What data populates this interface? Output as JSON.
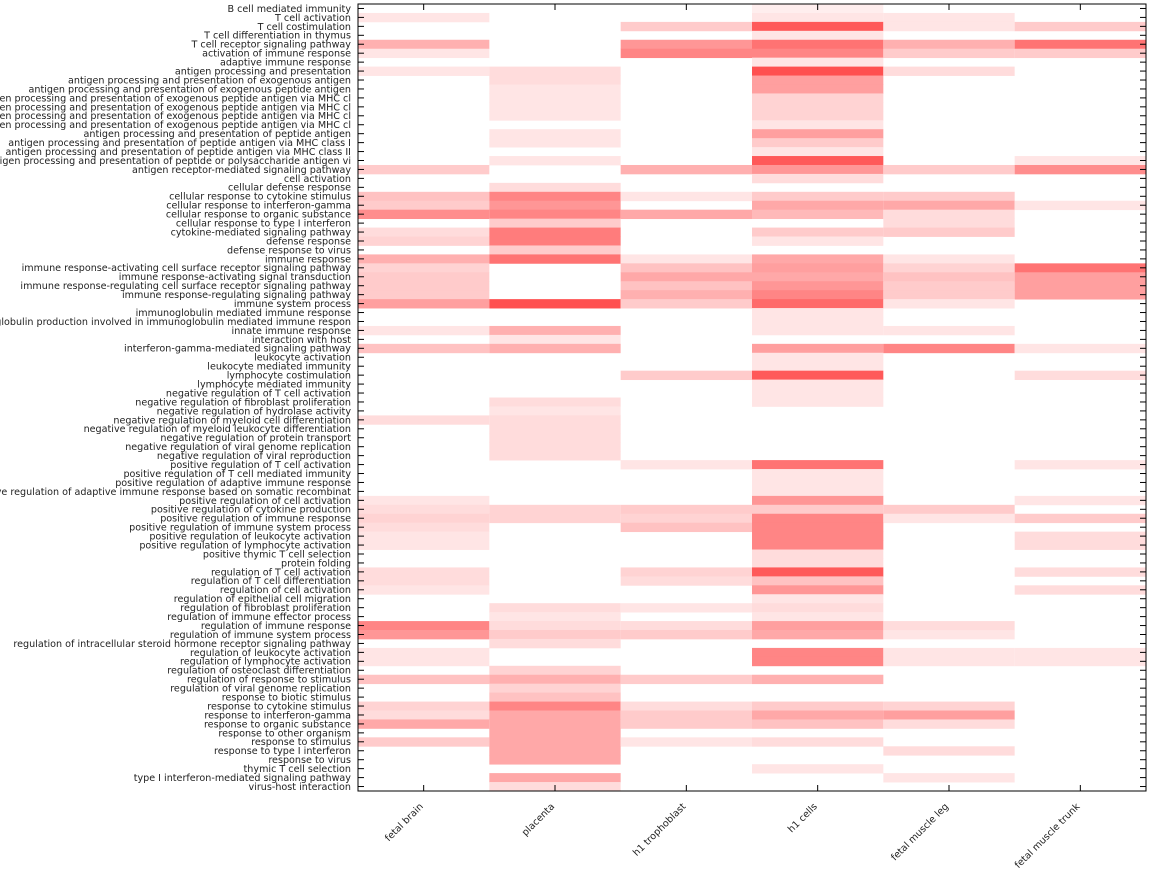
{
  "chart_data": {
    "type": "heatmap",
    "title": "",
    "xlabel": "",
    "ylabel": "",
    "color_low": "#ffffff",
    "color_high": "#ff5050",
    "value_range": [
      0,
      1
    ],
    "x_categories": [
      "fetal brain",
      "placenta",
      "h1 trophoblast",
      "h1 cells",
      "fetal muscle leg",
      "fetal muscle trunk"
    ],
    "y_categories": [
      "B cell mediated immunity",
      "T cell activation",
      "T cell costimulation",
      "T cell differentiation in thymus",
      "T cell receptor signaling pathway",
      "activation of immune response",
      "adaptive immune response",
      "antigen processing and presentation",
      "antigen processing and presentation of exogenous antigen",
      "antigen processing and presentation of exogenous peptide antigen",
      "antigen processing and presentation of exogenous peptide antigen via MHC cl",
      "antigen processing and presentation of exogenous peptide antigen via MHC cl",
      "antigen processing and presentation of exogenous peptide antigen via MHC cl",
      "antigen processing and presentation of exogenous peptide antigen via MHC cl",
      "antigen processing and presentation of peptide antigen",
      "antigen processing and presentation of peptide antigen via MHC class I",
      "antigen processing and presentation of peptide antigen via MHC class II",
      "antigen processing and presentation of peptide or polysaccharide antigen vi",
      "antigen receptor-mediated signaling pathway",
      "cell activation",
      "cellular defense response",
      "cellular response to cytokine stimulus",
      "cellular response to interferon-gamma",
      "cellular response to organic substance",
      "cellular response to type I interferon",
      "cytokine-mediated signaling pathway",
      "defense response",
      "defense response to virus",
      "immune response",
      "immune response-activating cell surface receptor signaling pathway",
      "immune response-activating signal transduction",
      "immune response-regulating cell surface receptor signaling pathway",
      "immune response-regulating signaling pathway",
      "immune system process",
      "immunoglobulin mediated immune response",
      "immunoglobulin production involved in immunoglobulin mediated immune respon",
      "innate immune response",
      "interaction with host",
      "interferon-gamma-mediated signaling pathway",
      "leukocyte activation",
      "leukocyte mediated immunity",
      "lymphocyte costimulation",
      "lymphocyte mediated immunity",
      "negative regulation of T cell activation",
      "negative regulation of fibroblast proliferation",
      "negative regulation of hydrolase activity",
      "negative regulation of myeloid cell differentiation",
      "negative regulation of myeloid leukocyte differentiation",
      "negative regulation of protein transport",
      "negative regulation of viral genome replication",
      "negative regulation of viral reproduction",
      "positive regulation of T cell activation",
      "positive regulation of T cell mediated immunity",
      "positive regulation of adaptive immune response",
      "positive regulation of adaptive immune response based on somatic recombinat",
      "positive regulation of cell activation",
      "positive regulation of cytokine production",
      "positive regulation of immune response",
      "positive regulation of immune system process",
      "positive regulation of leukocyte activation",
      "positive regulation of lymphocyte activation",
      "positive thymic T cell selection",
      "protein folding",
      "regulation of T cell activation",
      "regulation of T cell differentiation",
      "regulation of cell activation",
      "regulation of epithelial cell migration",
      "regulation of fibroblast proliferation",
      "regulation of immune effector process",
      "regulation of immune response",
      "regulation of immune system process",
      "regulation of intracellular steroid hormone receptor signaling pathway",
      "regulation of leukocyte activation",
      "regulation of lymphocyte activation",
      "regulation of osteoclast differentiation",
      "regulation of response to stimulus",
      "regulation of viral genome replication",
      "response to biotic stimulus",
      "response to cytokine stimulus",
      "response to interferon-gamma",
      "response to organic substance",
      "response to other organism",
      "response to stimulus",
      "response to type I interferon",
      "response to virus",
      "thymic T cell selection",
      "type I interferon-mediated signaling pathway",
      "virus-host interaction"
    ],
    "values": [
      [
        0,
        0,
        0,
        0.1,
        0,
        0
      ],
      [
        0.15,
        0,
        0,
        0.15,
        0.15,
        0
      ],
      [
        0,
        0,
        0.3,
        0.95,
        0.15,
        0.3
      ],
      [
        0,
        0,
        0,
        0.15,
        0,
        0
      ],
      [
        0.45,
        0,
        0.6,
        0.8,
        0.45,
        0.8
      ],
      [
        0.15,
        0,
        0.7,
        0.7,
        0.3,
        0.3
      ],
      [
        0,
        0,
        0,
        0.15,
        0,
        0
      ],
      [
        0.15,
        0.2,
        0,
        1.0,
        0.2,
        0
      ],
      [
        0,
        0.2,
        0,
        0.55,
        0,
        0
      ],
      [
        0,
        0.15,
        0,
        0.55,
        0,
        0
      ],
      [
        0,
        0.15,
        0,
        0.25,
        0,
        0
      ],
      [
        0,
        0.15,
        0,
        0.25,
        0,
        0
      ],
      [
        0,
        0.15,
        0,
        0.25,
        0,
        0
      ],
      [
        0,
        0,
        0,
        0.15,
        0,
        0
      ],
      [
        0,
        0.15,
        0,
        0.55,
        0,
        0
      ],
      [
        0,
        0.15,
        0,
        0.3,
        0,
        0
      ],
      [
        0,
        0,
        0,
        0.15,
        0,
        0
      ],
      [
        0,
        0.15,
        0,
        0.95,
        0,
        0.15
      ],
      [
        0.3,
        0,
        0.45,
        0.6,
        0.3,
        0.65
      ],
      [
        0,
        0,
        0,
        0.2,
        0,
        0
      ],
      [
        0,
        0.2,
        0,
        0,
        0,
        0
      ],
      [
        0.35,
        0.7,
        0.15,
        0.3,
        0.3,
        0
      ],
      [
        0.3,
        0.6,
        0,
        0.5,
        0.5,
        0.15
      ],
      [
        0.65,
        0.7,
        0.5,
        0.4,
        0.2,
        0
      ],
      [
        0,
        0.3,
        0,
        0,
        0.2,
        0
      ],
      [
        0.2,
        0.75,
        0,
        0.3,
        0.3,
        0
      ],
      [
        0.25,
        0.75,
        0,
        0.15,
        0,
        0
      ],
      [
        0,
        0.3,
        0,
        0,
        0,
        0
      ],
      [
        0.45,
        0.8,
        0.15,
        0.5,
        0.15,
        0
      ],
      [
        0.25,
        0,
        0.35,
        0.55,
        0.25,
        0.8
      ],
      [
        0.3,
        0,
        0.5,
        0.5,
        0.35,
        0.55
      ],
      [
        0.3,
        0,
        0.35,
        0.6,
        0.3,
        0.55
      ],
      [
        0.3,
        0,
        0.45,
        0.7,
        0.3,
        0.55
      ],
      [
        0.55,
        1.0,
        0.3,
        0.85,
        0.15,
        0
      ],
      [
        0,
        0,
        0,
        0.15,
        0,
        0
      ],
      [
        0,
        0,
        0,
        0.15,
        0,
        0
      ],
      [
        0.15,
        0.45,
        0,
        0.15,
        0.15,
        0
      ],
      [
        0,
        0.15,
        0,
        0,
        0,
        0
      ],
      [
        0.35,
        0.45,
        0,
        0.55,
        0.7,
        0.15
      ],
      [
        0,
        0,
        0,
        0.15,
        0,
        0
      ],
      [
        0,
        0,
        0,
        0.15,
        0,
        0
      ],
      [
        0,
        0,
        0.3,
        0.95,
        0,
        0.2
      ],
      [
        0,
        0,
        0,
        0.15,
        0,
        0
      ],
      [
        0,
        0,
        0,
        0.15,
        0,
        0
      ],
      [
        0,
        0.2,
        0,
        0.15,
        0,
        0
      ],
      [
        0,
        0.15,
        0,
        0,
        0,
        0
      ],
      [
        0.2,
        0.2,
        0,
        0,
        0,
        0
      ],
      [
        0,
        0.2,
        0,
        0,
        0,
        0
      ],
      [
        0,
        0.2,
        0,
        0,
        0,
        0
      ],
      [
        0,
        0.2,
        0,
        0,
        0,
        0
      ],
      [
        0,
        0.2,
        0,
        0,
        0,
        0
      ],
      [
        0,
        0,
        0.15,
        0.8,
        0,
        0.15
      ],
      [
        0,
        0,
        0,
        0.15,
        0,
        0
      ],
      [
        0,
        0,
        0,
        0.15,
        0,
        0
      ],
      [
        0,
        0,
        0,
        0.15,
        0,
        0
      ],
      [
        0.15,
        0,
        0,
        0.6,
        0,
        0.15
      ],
      [
        0.2,
        0.25,
        0.3,
        0.3,
        0.3,
        0
      ],
      [
        0.25,
        0.25,
        0.25,
        0.7,
        0.15,
        0.3
      ],
      [
        0.2,
        0,
        0.35,
        0.7,
        0,
        0
      ],
      [
        0.15,
        0,
        0,
        0.7,
        0,
        0.2
      ],
      [
        0.15,
        0,
        0,
        0.7,
        0,
        0.2
      ],
      [
        0,
        0,
        0,
        0.2,
        0,
        0
      ],
      [
        0,
        0,
        0,
        0.2,
        0,
        0
      ],
      [
        0.2,
        0,
        0.25,
        0.95,
        0,
        0.2
      ],
      [
        0.2,
        0,
        0.2,
        0.35,
        0,
        0
      ],
      [
        0.15,
        0,
        0,
        0.6,
        0,
        0.2
      ],
      [
        0,
        0,
        0,
        0.15,
        0,
        0
      ],
      [
        0,
        0.2,
        0.15,
        0.2,
        0,
        0
      ],
      [
        0,
        0.15,
        0,
        0.15,
        0,
        0
      ],
      [
        0.7,
        0.2,
        0.2,
        0.55,
        0.2,
        0
      ],
      [
        0.6,
        0.3,
        0.3,
        0.5,
        0.15,
        0
      ],
      [
        0,
        0.2,
        0,
        0,
        0,
        0
      ],
      [
        0.15,
        0,
        0,
        0.7,
        0.15,
        0.15
      ],
      [
        0.15,
        0,
        0,
        0.7,
        0.15,
        0.15
      ],
      [
        0,
        0.25,
        0,
        0,
        0,
        0
      ],
      [
        0.35,
        0.45,
        0.3,
        0.45,
        0,
        0
      ],
      [
        0,
        0.25,
        0,
        0,
        0,
        0
      ],
      [
        0,
        0.35,
        0,
        0,
        0,
        0
      ],
      [
        0.25,
        0.7,
        0.2,
        0.3,
        0.25,
        0
      ],
      [
        0.2,
        0.5,
        0.3,
        0.5,
        0.55,
        0
      ],
      [
        0.5,
        0.5,
        0.3,
        0.35,
        0.2,
        0
      ],
      [
        0,
        0.5,
        0,
        0,
        0,
        0
      ],
      [
        0.3,
        0.5,
        0.15,
        0.2,
        0,
        0
      ],
      [
        0,
        0.5,
        0,
        0,
        0.2,
        0
      ],
      [
        0,
        0.5,
        0,
        0,
        0,
        0
      ],
      [
        0,
        0,
        0,
        0.15,
        0,
        0
      ],
      [
        0,
        0.5,
        0,
        0,
        0.15,
        0
      ],
      [
        0,
        0.2,
        0,
        0,
        0,
        0
      ]
    ]
  }
}
